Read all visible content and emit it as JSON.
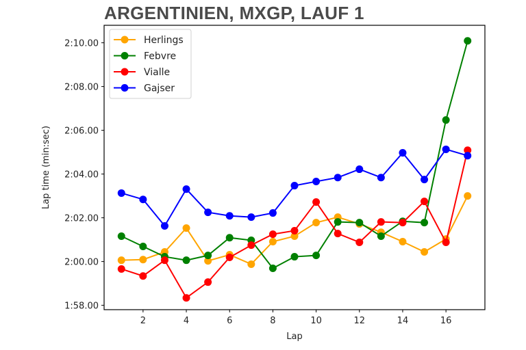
{
  "chart_data": {
    "type": "line",
    "title": "ARGENTINIEN, MXGP, LAUF 1",
    "xlabel": "Lap",
    "ylabel": "Lap time (min:sec)",
    "x": [
      1,
      2,
      3,
      4,
      5,
      6,
      7,
      8,
      9,
      10,
      11,
      12,
      13,
      14,
      15,
      16,
      17
    ],
    "xticks": [
      2,
      4,
      6,
      8,
      10,
      12,
      14,
      16
    ],
    "xlim": [
      0.2,
      17.8
    ],
    "yticks_seconds": [
      118,
      120,
      122,
      124,
      126,
      128,
      130
    ],
    "ytick_labels": [
      "1:58.00",
      "2:00.00",
      "2:02.00",
      "2:04.00",
      "2:06.00",
      "2:08.00",
      "2:10.00"
    ],
    "ylim_seconds": [
      117.8,
      130.8
    ],
    "grid": false,
    "legend_position": "upper left",
    "series": [
      {
        "name": "Herlings",
        "color": "#FFA500",
        "values": [
          120.06,
          120.09,
          120.44,
          121.53,
          120.03,
          120.31,
          119.88,
          120.91,
          121.16,
          121.78,
          122.03,
          121.72,
          121.34,
          120.91,
          120.44,
          121.03,
          123.0
        ]
      },
      {
        "name": "Febvre",
        "color": "#008000",
        "values": [
          121.16,
          120.69,
          120.22,
          120.06,
          120.28,
          121.09,
          120.97,
          119.69,
          120.22,
          120.28,
          121.81,
          121.78,
          121.16,
          121.84,
          121.78,
          126.47,
          130.09
        ]
      },
      {
        "name": "Vialle",
        "color": "#FF0000",
        "values": [
          119.66,
          119.34,
          120.06,
          118.34,
          119.06,
          120.19,
          120.75,
          121.25,
          121.41,
          122.72,
          121.28,
          120.88,
          121.81,
          121.78,
          122.75,
          120.88,
          125.09
        ]
      },
      {
        "name": "Gajser",
        "color": "#0000FF",
        "values": [
          123.13,
          122.84,
          121.63,
          123.31,
          122.25,
          122.09,
          122.03,
          122.22,
          123.47,
          123.66,
          123.84,
          124.22,
          123.84,
          124.97,
          123.75,
          125.13,
          124.84
        ]
      }
    ]
  }
}
